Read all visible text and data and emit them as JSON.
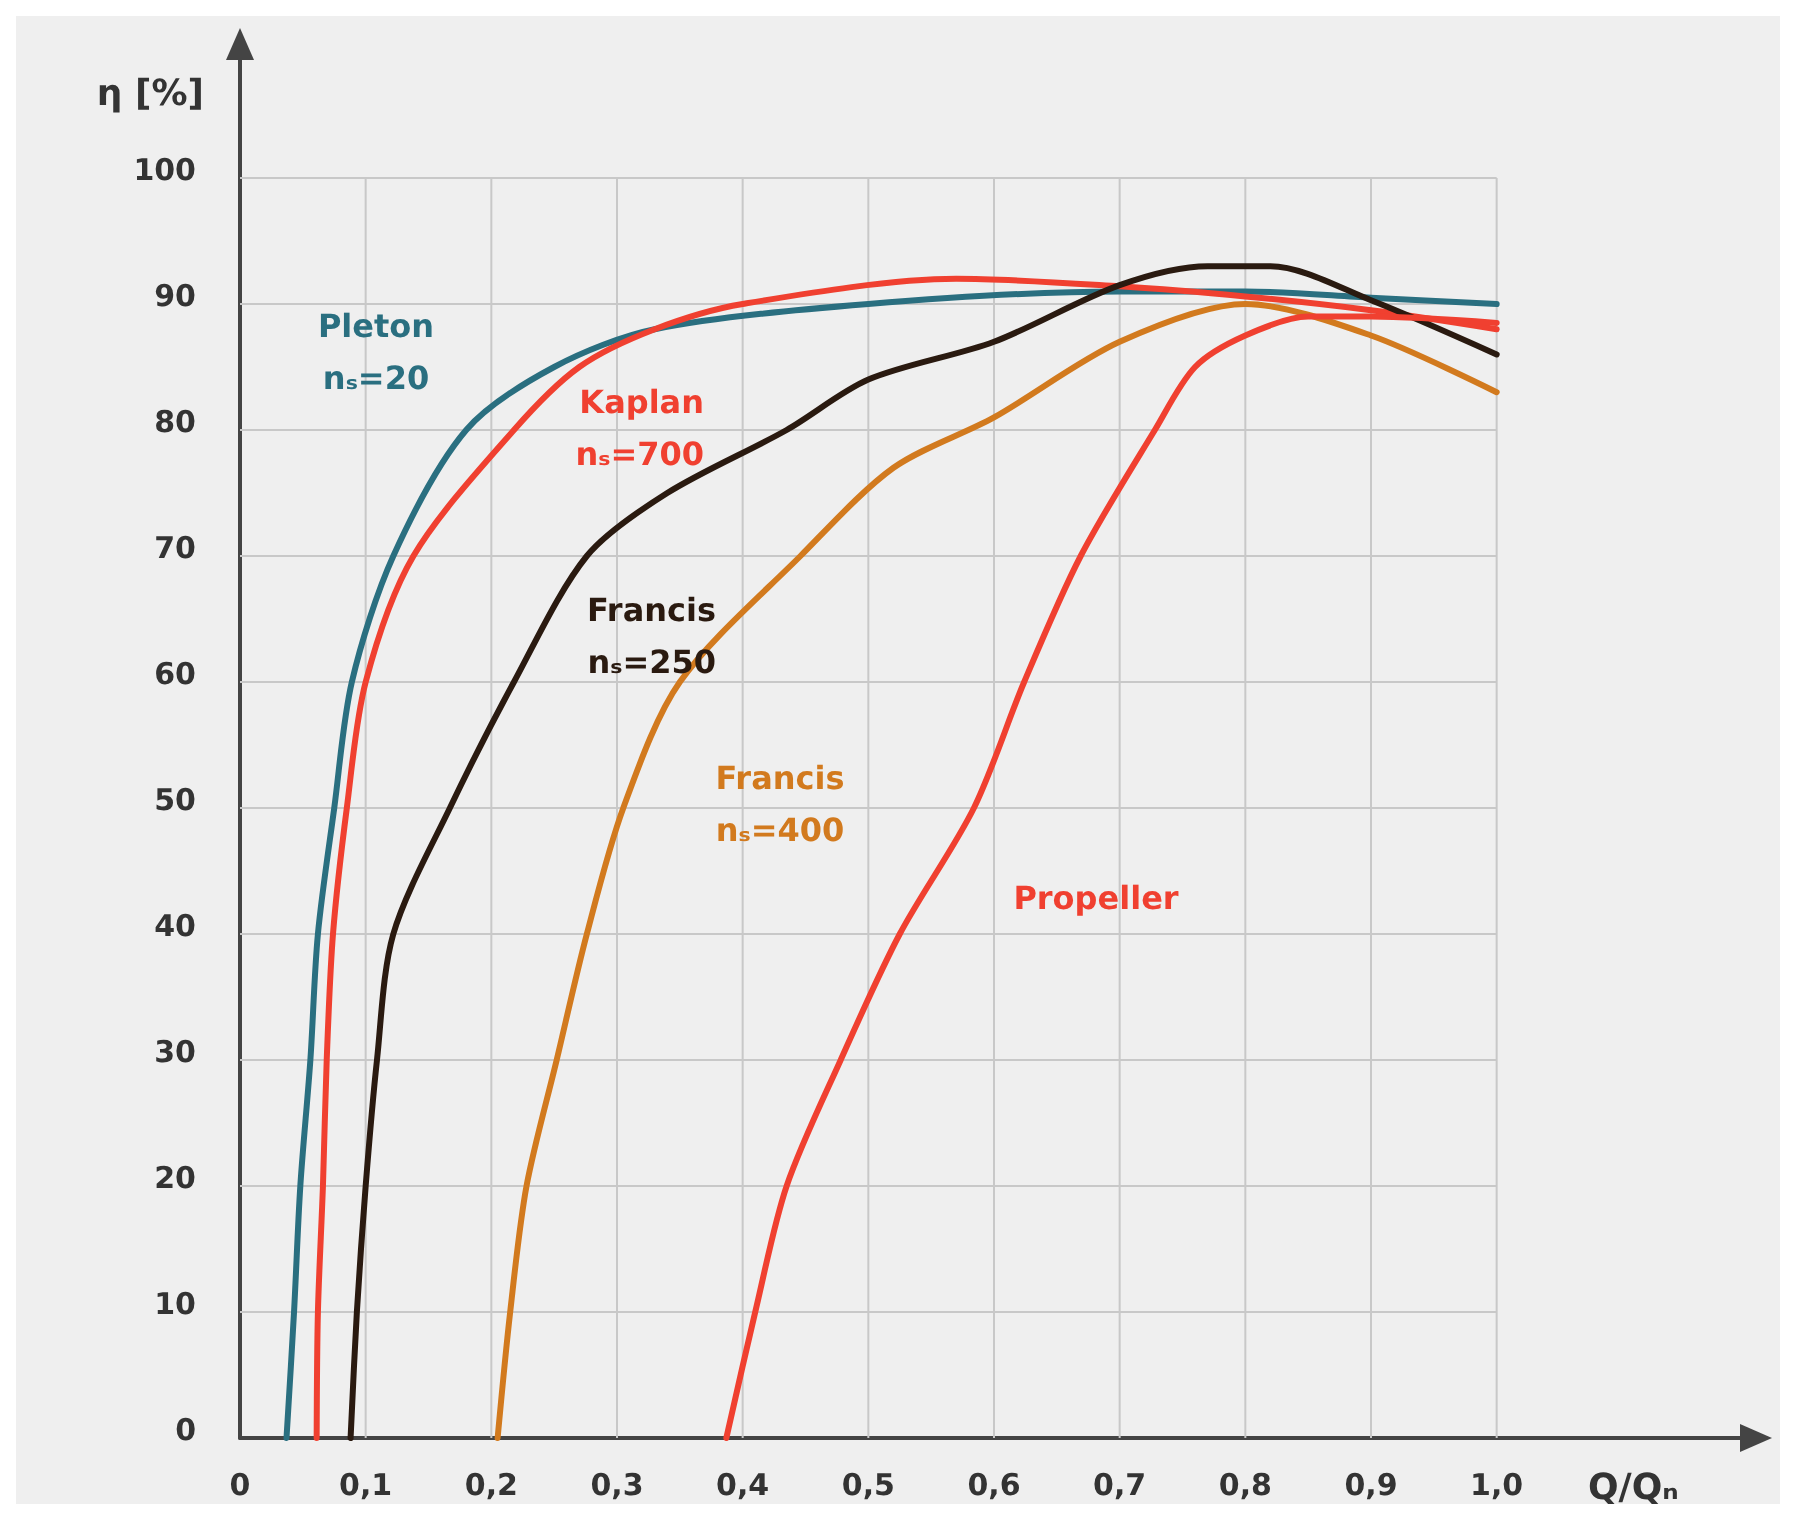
{
  "chart_data": {
    "type": "line",
    "xlabel": "Q/Qₙ",
    "ylabel": "η [%]",
    "xlim": [
      0,
      1.2
    ],
    "ylim": [
      0,
      110
    ],
    "xticks": [
      0,
      {
        "value": 0.1,
        "label": "0,1"
      },
      {
        "value": 0.2,
        "label": "0,2"
      },
      {
        "value": 0.3,
        "label": "0,3"
      },
      {
        "value": 0.4,
        "label": "0,4"
      },
      {
        "value": 0.5,
        "label": "0,5"
      },
      {
        "value": 0.6,
        "label": "0,6"
      },
      {
        "value": 0.7,
        "label": "0,7"
      },
      {
        "value": 0.8,
        "label": "0,8"
      },
      {
        "value": 0.9,
        "label": "0,9"
      },
      {
        "value": 1,
        "label": "1,0"
      }
    ],
    "yticks": [
      0,
      10,
      20,
      30,
      40,
      50,
      60,
      70,
      80,
      90,
      100
    ],
    "grid": true,
    "legend": false,
    "marker": "none",
    "line_style": "solid",
    "series": [
      {
        "name": "Pleton\nnₛ=20",
        "color": "#2a6f80",
        "x": [
          0.037,
          0.043,
          0.048,
          0.056,
          0.062,
          0.075,
          0.089,
          0.122,
          0.18,
          0.25,
          0.33,
          0.5,
          0.7,
          0.8,
          0.9,
          1.0
        ],
        "values": [
          0,
          10,
          20,
          30,
          40,
          50,
          60,
          70,
          80,
          85,
          88,
          90,
          91,
          91,
          90.5,
          90
        ]
      },
      {
        "name": "Kaplan\nnₛ=700",
        "color": "#f04030",
        "x": [
          0.061,
          0.062,
          0.066,
          0.069,
          0.074,
          0.085,
          0.1,
          0.138,
          0.218,
          0.27,
          0.33,
          0.4,
          0.57,
          0.7,
          0.8,
          0.9,
          1.0
        ],
        "values": [
          0,
          10,
          20,
          30,
          40,
          50,
          60,
          70,
          80,
          85,
          88,
          90,
          92,
          91.4,
          90.6,
          89.5,
          88
        ]
      },
      {
        "name": "Francis\nnₛ=250",
        "color": "#2a1a10",
        "x": [
          0.088,
          0.093,
          0.1,
          0.109,
          0.122,
          0.167,
          0.218,
          0.276,
          0.34,
          0.435,
          0.5,
          0.6,
          0.7,
          0.77,
          0.82,
          0.9,
          1.0
        ],
        "values": [
          0,
          10,
          20,
          30,
          40,
          50,
          60,
          70,
          75,
          80,
          84,
          87,
          91.5,
          93,
          93,
          90.3,
          86
        ]
      },
      {
        "name": "Francis\nnₛ=400",
        "color": "#d27a1e",
        "x": [
          0.205,
          0.215,
          0.228,
          0.252,
          0.276,
          0.305,
          0.35,
          0.446,
          0.52,
          0.6,
          0.7,
          0.8,
          0.9,
          1.0
        ],
        "values": [
          0,
          10,
          20,
          30,
          40,
          50,
          60,
          70,
          77,
          81,
          87,
          90,
          87.5,
          83
        ]
      },
      {
        "name": "Propeller",
        "color": "#f04030",
        "x": [
          0.387,
          0.41,
          0.435,
          0.478,
          0.525,
          0.584,
          0.624,
          0.669,
          0.728,
          0.76,
          0.8,
          0.85,
          0.9,
          1.0
        ],
        "values": [
          0,
          10,
          20,
          30,
          40,
          50,
          60,
          70,
          80,
          85,
          87.5,
          89,
          89,
          88.5
        ]
      }
    ]
  }
}
